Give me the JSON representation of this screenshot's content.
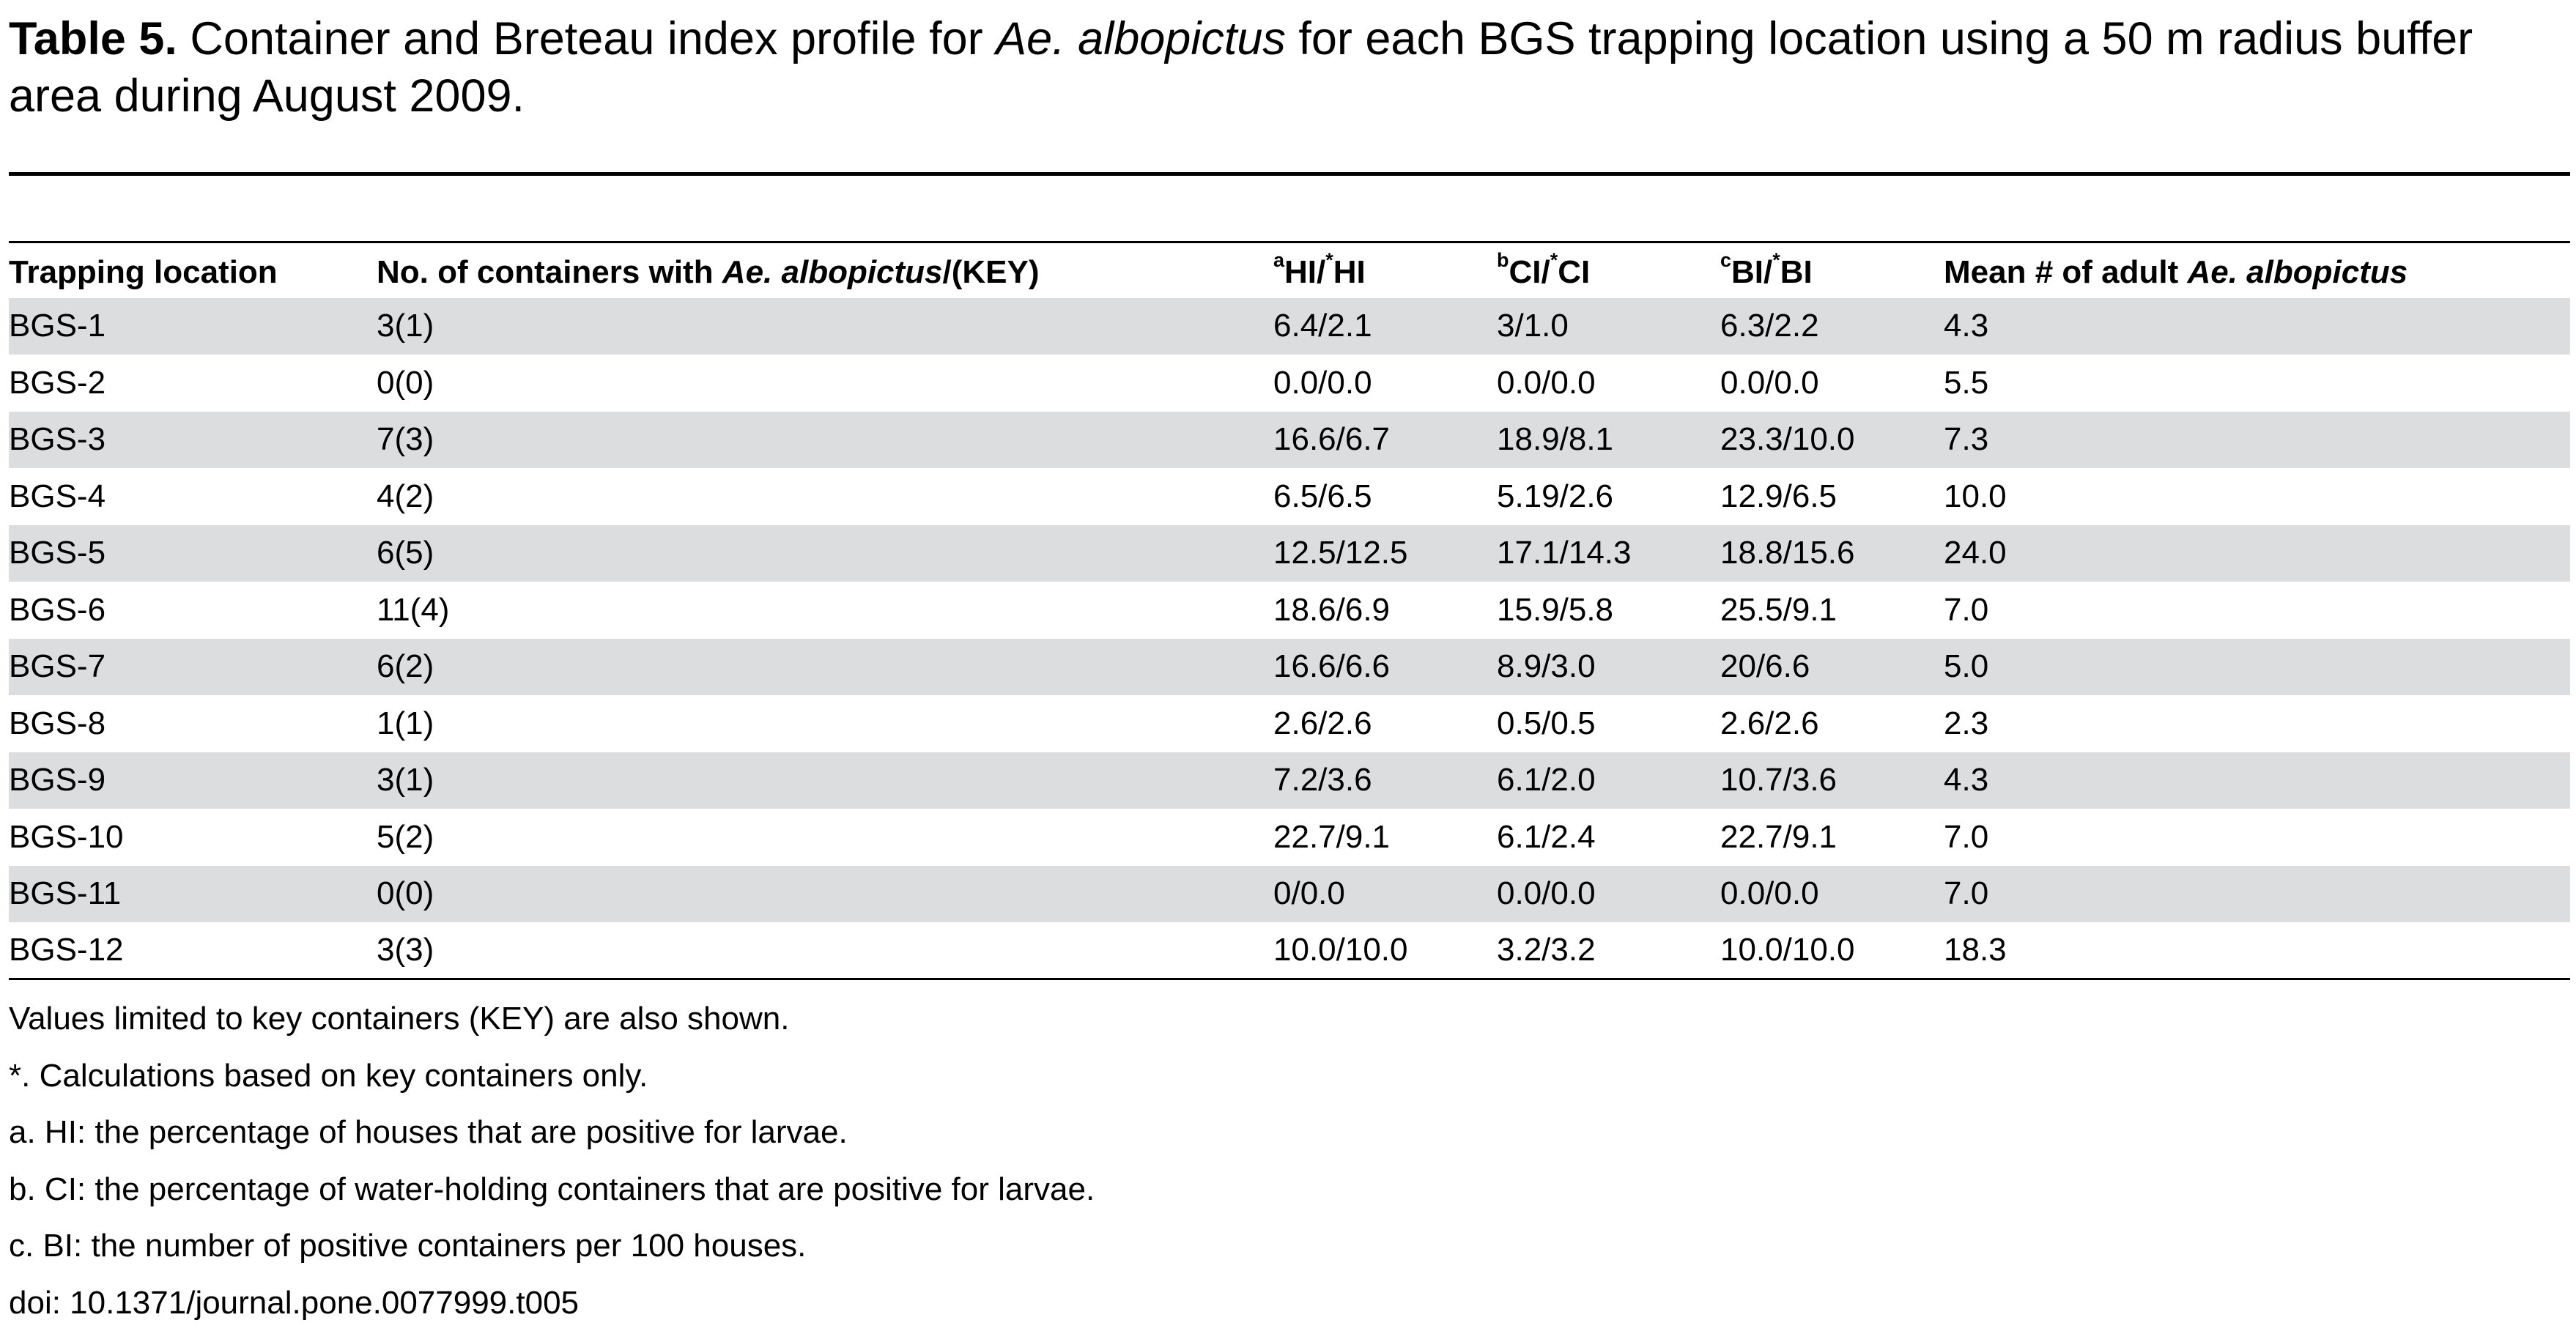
{
  "caption": {
    "label": "Table 5.",
    "text_before": " Container and Breteau index profile for ",
    "species": "Ae. albopictus",
    "text_after": " for each BGS trapping location using a 50 m radius buffer area during August 2009."
  },
  "table": {
    "headers": {
      "location": "Trapping location",
      "containers_pre": "No. of containers with ",
      "containers_species": "Ae. albopictus",
      "containers_post": "/(KEY)",
      "hi_sup_a": "a",
      "hi_text1": "HI/",
      "hi_sup_star": "*",
      "hi_text2": "HI",
      "ci_sup_b": "b",
      "ci_text1": "CI/",
      "ci_sup_star": "*",
      "ci_text2": "CI",
      "bi_sup_c": "c",
      "bi_text1": "BI/",
      "bi_sup_star": "*",
      "bi_text2": "BI",
      "mean_pre": "Mean # of adult ",
      "mean_species": "Ae. albopictus"
    },
    "rows": [
      {
        "location": "BGS-1",
        "containers": "3(1)",
        "hi": "6.4/2.1",
        "ci": "3/1.0",
        "bi": "6.3/2.2",
        "mean": "4.3"
      },
      {
        "location": "BGS-2",
        "containers": "0(0)",
        "hi": "0.0/0.0",
        "ci": "0.0/0.0",
        "bi": "0.0/0.0",
        "mean": "5.5"
      },
      {
        "location": "BGS-3",
        "containers": "7(3)",
        "hi": "16.6/6.7",
        "ci": "18.9/8.1",
        "bi": "23.3/10.0",
        "mean": "7.3"
      },
      {
        "location": "BGS-4",
        "containers": "4(2)",
        "hi": "6.5/6.5",
        "ci": "5.19/2.6",
        "bi": "12.9/6.5",
        "mean": "10.0"
      },
      {
        "location": "BGS-5",
        "containers": "6(5)",
        "hi": "12.5/12.5",
        "ci": "17.1/14.3",
        "bi": "18.8/15.6",
        "mean": "24.0"
      },
      {
        "location": "BGS-6",
        "containers": "11(4)",
        "hi": "18.6/6.9",
        "ci": "15.9/5.8",
        "bi": "25.5/9.1",
        "mean": "7.0"
      },
      {
        "location": "BGS-7",
        "containers": "6(2)",
        "hi": "16.6/6.6",
        "ci": "8.9/3.0",
        "bi": "20/6.6",
        "mean": "5.0"
      },
      {
        "location": "BGS-8",
        "containers": "1(1)",
        "hi": "2.6/2.6",
        "ci": "0.5/0.5",
        "bi": "2.6/2.6",
        "mean": "2.3"
      },
      {
        "location": "BGS-9",
        "containers": "3(1)",
        "hi": "7.2/3.6",
        "ci": "6.1/2.0",
        "bi": "10.7/3.6",
        "mean": "4.3"
      },
      {
        "location": "BGS-10",
        "containers": "5(2)",
        "hi": "22.7/9.1",
        "ci": "6.1/2.4",
        "bi": "22.7/9.1",
        "mean": "7.0"
      },
      {
        "location": "BGS-11",
        "containers": "0(0)",
        "hi": "0/0.0",
        "ci": "0.0/0.0",
        "bi": "0.0/0.0",
        "mean": "7.0"
      },
      {
        "location": "BGS-12",
        "containers": "3(3)",
        "hi": "10.0/10.0",
        "ci": "3.2/3.2",
        "bi": "10.0/10.0",
        "mean": "18.3"
      }
    ]
  },
  "notes": [
    "Values limited to key containers (KEY) are also shown.",
    "*. Calculations based on key containers only.",
    "a. HI: the percentage of houses that are positive for larvae.",
    "b. CI: the percentage of water-holding containers that are positive for larvae.",
    "c. BI: the number of positive containers per 100 houses.",
    "doi: 10.1371/journal.pone.0077999.t005"
  ]
}
